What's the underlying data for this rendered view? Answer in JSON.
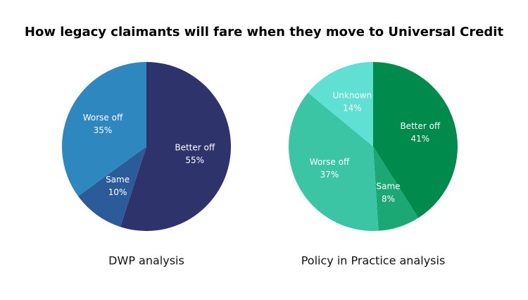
{
  "title": "How legacy claimants will fare when they move to Universal Credit",
  "chart_data": [
    {
      "type": "pie",
      "title": "DWP analysis",
      "categories": [
        "Better off",
        "Same",
        "Worse off"
      ],
      "values": [
        55,
        10,
        35
      ],
      "value_labels": [
        "55%",
        "10%",
        "35%"
      ],
      "colors": [
        "#2f336b",
        "#2c5b9a",
        "#2e87bf"
      ]
    },
    {
      "type": "pie",
      "title": "Policy in Practice analysis",
      "categories": [
        "Better off",
        "Same",
        "Worse off",
        "Unknown"
      ],
      "values": [
        41,
        8,
        37,
        14
      ],
      "value_labels": [
        "41%",
        "8%",
        "37%",
        "14%"
      ],
      "colors": [
        "#008a4b",
        "#1ca874",
        "#3cc5a5",
        "#5fe0d3"
      ]
    }
  ]
}
